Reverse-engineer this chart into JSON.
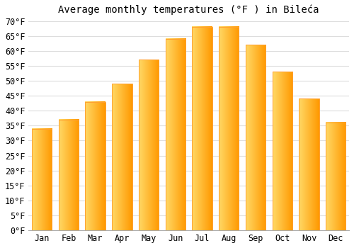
{
  "title": "Average monthly temperatures (°F ) in Bileća",
  "months": [
    "Jan",
    "Feb",
    "Mar",
    "Apr",
    "May",
    "Jun",
    "Jul",
    "Aug",
    "Sep",
    "Oct",
    "Nov",
    "Dec"
  ],
  "values": [
    34,
    37,
    43,
    49,
    57,
    64,
    68,
    68,
    62,
    53,
    44,
    36
  ],
  "bar_color_left": "#FFD966",
  "bar_color_right": "#FFA500",
  "bar_color_top": "#FFB300",
  "background_color": "#FFFFFF",
  "grid_color": "#DDDDDD",
  "ylim": [
    0,
    70
  ],
  "ytick_step": 5,
  "title_fontsize": 10,
  "tick_fontsize": 8.5
}
